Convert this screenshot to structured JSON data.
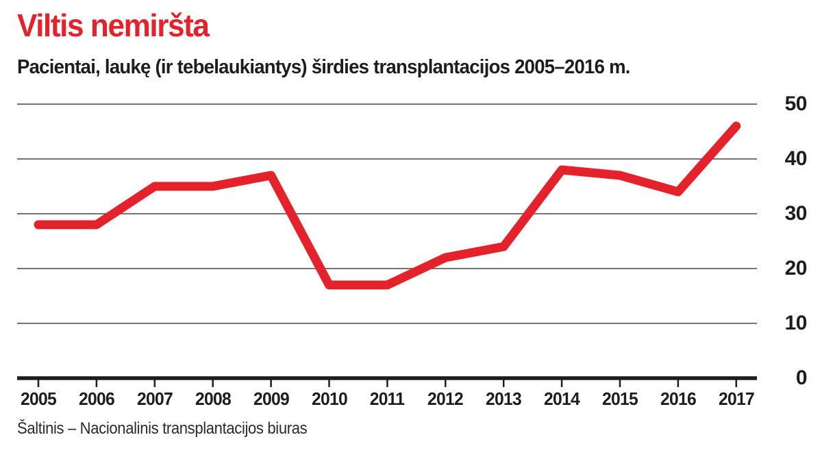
{
  "header": {
    "title": "Viltis nemiršta",
    "subtitle": "Pacientai, laukę (ir tebelaukiantys) širdies transplantacijos 2005–2016 m."
  },
  "source": "Šaltinis – Nacionalinis transplantacijos biuras",
  "colors": {
    "accent_red": "#e3222b",
    "text": "#1d1d1b",
    "grid": "#454545",
    "axis": "#1d1d1b",
    "background": "#ffffff"
  },
  "chart_data": {
    "type": "line",
    "title": "Viltis nemiršta",
    "subtitle": "Pacientai, laukę (ir tebelaukiantys) širdies transplantacijos 2005–2016 m.",
    "x": [
      2005,
      2006,
      2007,
      2008,
      2009,
      2010,
      2011,
      2012,
      2013,
      2014,
      2015,
      2016,
      2017
    ],
    "series": [
      {
        "name": "Pacientai, laukę širdies transplantacijos",
        "values": [
          28,
          28,
          35,
          35,
          37,
          17,
          17,
          22,
          24,
          38,
          37,
          34,
          46
        ],
        "color": "#e3222b"
      }
    ],
    "xlabel": "",
    "ylabel": "",
    "ylim": [
      0,
      50
    ],
    "y_ticks": [
      0,
      10,
      20,
      30,
      40,
      50
    ],
    "grid": "horizontal",
    "legend_position": "none",
    "line_width": 13,
    "source": "Šaltinis – Nacionalinis transplantacijos biuras"
  }
}
